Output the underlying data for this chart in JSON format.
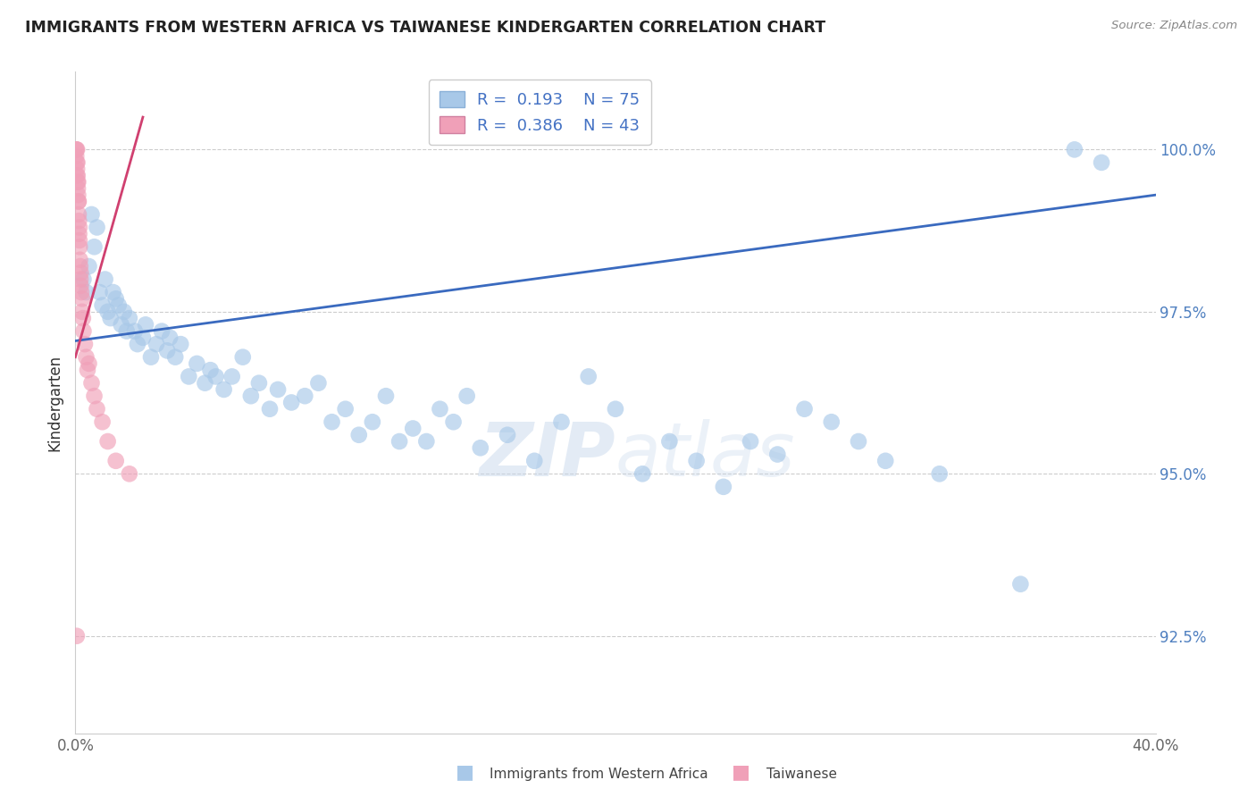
{
  "title": "IMMIGRANTS FROM WESTERN AFRICA VS TAIWANESE KINDERGARTEN CORRELATION CHART",
  "source": "Source: ZipAtlas.com",
  "ylabel": "Kindergarten",
  "y_tick_values": [
    92.5,
    95.0,
    97.5,
    100.0
  ],
  "xlim": [
    0.0,
    40.0
  ],
  "ylim": [
    91.0,
    101.2
  ],
  "blue_R": 0.193,
  "blue_N": 75,
  "pink_R": 0.386,
  "pink_N": 43,
  "blue_color": "#a8c8e8",
  "pink_color": "#f0a0b8",
  "blue_line_color": "#3a6abf",
  "pink_line_color": "#d04070",
  "legend_label_blue": "Immigrants from Western Africa",
  "legend_label_pink": "Taiwanese",
  "blue_trend_x": [
    0.0,
    40.0
  ],
  "blue_trend_y": [
    97.05,
    99.3
  ],
  "pink_trend_x": [
    0.0,
    2.5
  ],
  "pink_trend_y": [
    96.8,
    100.5
  ],
  "blue_scatter_x": [
    0.5,
    0.6,
    0.7,
    0.8,
    0.9,
    1.0,
    1.1,
    1.2,
    1.3,
    1.4,
    1.5,
    1.7,
    1.8,
    1.9,
    2.0,
    2.2,
    2.3,
    2.5,
    2.6,
    2.8,
    3.0,
    3.2,
    3.4,
    3.5,
    3.7,
    3.9,
    4.2,
    4.5,
    4.8,
    5.0,
    5.2,
    5.5,
    5.8,
    6.2,
    6.5,
    6.8,
    7.2,
    7.5,
    8.0,
    8.5,
    9.0,
    9.5,
    10.0,
    10.5,
    11.0,
    11.5,
    12.0,
    12.5,
    13.0,
    13.5,
    14.0,
    14.5,
    15.0,
    16.0,
    17.0,
    18.0,
    19.0,
    20.0,
    21.0,
    22.0,
    23.0,
    24.0,
    25.0,
    26.0,
    27.0,
    28.0,
    29.0,
    30.0,
    32.0,
    35.0,
    37.0,
    38.0,
    0.3,
    0.4,
    1.6
  ],
  "blue_scatter_y": [
    98.2,
    99.0,
    98.5,
    98.8,
    97.8,
    97.6,
    98.0,
    97.5,
    97.4,
    97.8,
    97.7,
    97.3,
    97.5,
    97.2,
    97.4,
    97.2,
    97.0,
    97.1,
    97.3,
    96.8,
    97.0,
    97.2,
    96.9,
    97.1,
    96.8,
    97.0,
    96.5,
    96.7,
    96.4,
    96.6,
    96.5,
    96.3,
    96.5,
    96.8,
    96.2,
    96.4,
    96.0,
    96.3,
    96.1,
    96.2,
    96.4,
    95.8,
    96.0,
    95.6,
    95.8,
    96.2,
    95.5,
    95.7,
    95.5,
    96.0,
    95.8,
    96.2,
    95.4,
    95.6,
    95.2,
    95.8,
    96.5,
    96.0,
    95.0,
    95.5,
    95.2,
    94.8,
    95.5,
    95.3,
    96.0,
    95.8,
    95.5,
    95.2,
    95.0,
    93.3,
    100.0,
    99.8,
    98.0,
    97.8,
    97.6
  ],
  "pink_scatter_x": [
    0.02,
    0.03,
    0.04,
    0.05,
    0.06,
    0.05,
    0.06,
    0.07,
    0.08,
    0.08,
    0.09,
    0.1,
    0.1,
    0.11,
    0.12,
    0.12,
    0.13,
    0.14,
    0.15,
    0.15,
    0.16,
    0.17,
    0.18,
    0.19,
    0.2,
    0.2,
    0.22,
    0.25,
    0.25,
    0.28,
    0.3,
    0.35,
    0.4,
    0.45,
    0.5,
    0.6,
    0.7,
    0.8,
    1.0,
    1.2,
    1.5,
    2.0,
    0.05
  ],
  "pink_scatter_y": [
    100.0,
    99.9,
    100.0,
    99.8,
    100.0,
    99.6,
    99.7,
    99.8,
    99.5,
    99.6,
    99.4,
    99.3,
    99.5,
    99.2,
    99.0,
    99.2,
    98.9,
    98.7,
    98.6,
    98.8,
    98.5,
    98.3,
    98.2,
    98.0,
    97.9,
    98.1,
    97.8,
    97.5,
    97.7,
    97.4,
    97.2,
    97.0,
    96.8,
    96.6,
    96.7,
    96.4,
    96.2,
    96.0,
    95.8,
    95.5,
    95.2,
    95.0,
    92.5
  ]
}
